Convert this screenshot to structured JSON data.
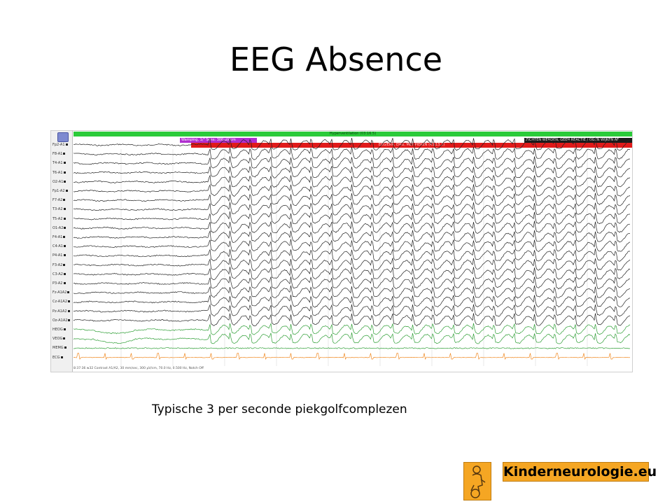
{
  "slide": {
    "title": "EEG Absence",
    "caption": "Typische 3 per seconde piekgolfcomplezen"
  },
  "eeg": {
    "channels": [
      "Fp2-A1",
      "F8-A1",
      "T4-A1",
      "T6-A1",
      "O2-A1",
      "Fp1-A2",
      "F7-A2",
      "T3-A2",
      "T5-A2",
      "O1-A2",
      "F4-A1",
      "C4-A1",
      "P4-A1",
      "F3-A2",
      "C3-A2",
      "P3-A2",
      "Fz-A1A2",
      "Cz-A1A2",
      "Pz-A1A2",
      "Oz-A1A2",
      "HEOG",
      "VEOG",
      "MEMG",
      "ECG"
    ],
    "annotations": {
      "hyperventilation": "Hyperventilation (03:16.5)",
      "segment": "Wamping, 1/\" Sens: 300 µV/cm",
      "event": "EEG/ERR, EMG, MET PIEKEN (43:13.2)",
      "right_label": "ZICHTEN WERDEN, GEEN REACTIE / OGEN WIJKEN AF"
    },
    "status_text": "8:37:36 w32 Contrast A1/A2, 30 mm/sec, 300 µV/cm, 70.0 Hz, 0.500 Hz, Notch Off"
  },
  "branding": {
    "logo_text": "Kinderneurologie.eu",
    "logo_icon": "child-silhouette-icon"
  },
  "colors": {
    "eeg_trace": "#222222",
    "eog_trace": "#2e9e35",
    "ecg_trace": "#f08a24",
    "logo_orange": "#f5a623"
  }
}
